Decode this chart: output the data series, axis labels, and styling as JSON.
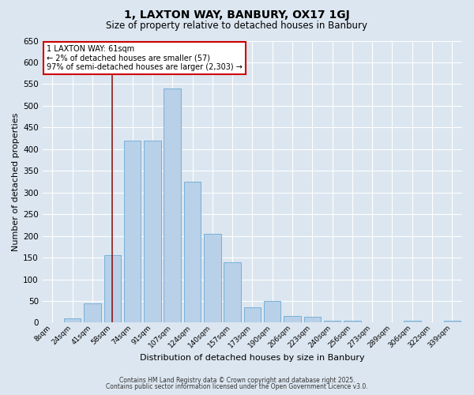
{
  "title": "1, LAXTON WAY, BANBURY, OX17 1GJ",
  "subtitle": "Size of property relative to detached houses in Banbury",
  "xlabel": "Distribution of detached houses by size in Banbury",
  "ylabel": "Number of detached properties",
  "categories": [
    "8sqm",
    "24sqm",
    "41sqm",
    "58sqm",
    "74sqm",
    "91sqm",
    "107sqm",
    "124sqm",
    "140sqm",
    "157sqm",
    "173sqm",
    "190sqm",
    "206sqm",
    "223sqm",
    "240sqm",
    "256sqm",
    "273sqm",
    "289sqm",
    "306sqm",
    "322sqm",
    "339sqm"
  ],
  "values": [
    0,
    10,
    45,
    155,
    420,
    420,
    540,
    325,
    205,
    140,
    35,
    50,
    15,
    13,
    5,
    5,
    0,
    0,
    5,
    0,
    5
  ],
  "bar_color": "#b8d0e8",
  "bar_edge_color": "#6aaad4",
  "background_color": "#dce6f0",
  "plot_bg_color": "#dce6f0",
  "grid_color": "#ffffff",
  "vline_color": "#8b1a1a",
  "vline_x_index": 3,
  "annotation_title": "1 LAXTON WAY: 61sqm",
  "annotation_line1": "← 2% of detached houses are smaller (57)",
  "annotation_line2": "97% of semi-detached houses are larger (2,303) →",
  "annotation_box_color": "#ffffff",
  "annotation_box_edge_color": "#cc0000",
  "ylim": [
    0,
    650
  ],
  "yticks": [
    0,
    50,
    100,
    150,
    200,
    250,
    300,
    350,
    400,
    450,
    500,
    550,
    600,
    650
  ],
  "title_fontsize": 10,
  "subtitle_fontsize": 8.5,
  "ylabel_fontsize": 8,
  "xlabel_fontsize": 8,
  "ytick_fontsize": 7.5,
  "xtick_fontsize": 6.5,
  "annotation_fontsize": 7,
  "footnote1": "Contains HM Land Registry data © Crown copyright and database right 2025.",
  "footnote2": "Contains public sector information licensed under the Open Government Licence v3.0.",
  "footnote_fontsize": 5.5
}
